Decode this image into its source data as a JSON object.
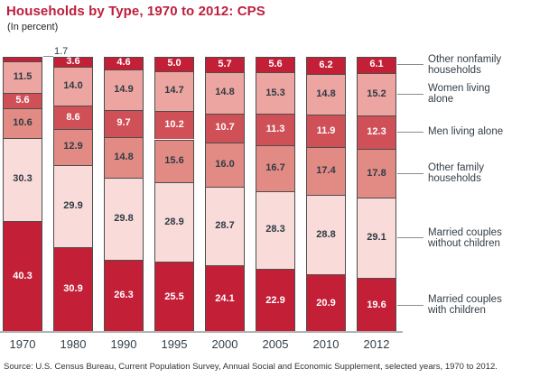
{
  "header": {
    "title": "Households by Type, 1970 to 2012: CPS",
    "subtitle": "(In percent)"
  },
  "source_note": "Source: U.S. Census Bureau, Current Population Survey, Annual Social and Economic Supplement, selected years, 1970 to 2012.",
  "colors": {
    "title_red": "#bd1f3c",
    "dark_red": "#c32038",
    "medium_red": "#d05057",
    "salmon": "#e28b84",
    "pink": "#eca5a0",
    "pale_pink": "#f9dcd9",
    "segment_border": "#4d4d4d",
    "axis_gray": "#b3b3b3",
    "text_dark": "#333e48"
  },
  "chart_data": {
    "type": "bar",
    "stacked": true,
    "title": "Households by Type, 1970 to 2012: CPS",
    "ylabel": "(In percent)",
    "ylim": [
      0,
      100
    ],
    "legend_position": "right",
    "grid": false,
    "categories": [
      "1970",
      "1980",
      "1990",
      "1995",
      "2000",
      "2005",
      "2010",
      "2012"
    ],
    "series": [
      {
        "name": "Married couples with children",
        "display": "Married couples\nwith children",
        "color": "#c32038",
        "label": "light",
        "values": [
          40.3,
          30.9,
          26.3,
          25.5,
          24.1,
          22.9,
          20.9,
          19.6
        ]
      },
      {
        "name": "Married couples without children",
        "display": "Married couples\nwithout children",
        "color": "#f9dcd9",
        "label": "dark",
        "values": [
          30.3,
          29.9,
          29.8,
          28.9,
          28.7,
          28.3,
          28.8,
          29.1
        ]
      },
      {
        "name": "Other family households",
        "display": "Other family\nhouseholds",
        "color": "#e28b84",
        "label": "dark",
        "values": [
          10.6,
          12.9,
          14.8,
          15.6,
          16.0,
          16.7,
          17.4,
          17.8
        ]
      },
      {
        "name": "Men living alone",
        "display": "Men living alone",
        "color": "#d05057",
        "label": "light",
        "values": [
          5.6,
          8.6,
          9.7,
          10.2,
          10.7,
          11.3,
          11.9,
          12.3
        ]
      },
      {
        "name": "Women living alone",
        "display": "Women living\nalone",
        "color": "#eca5a0",
        "label": "dark",
        "values": [
          11.5,
          14.0,
          14.9,
          14.7,
          14.8,
          15.3,
          14.8,
          15.2
        ]
      },
      {
        "name": "Other nonfamily households",
        "display": "Other nonfamily\nhouseholds",
        "color": "#c32038",
        "label": "light",
        "values": [
          1.7,
          3.6,
          4.6,
          5.0,
          5.7,
          5.6,
          6.2,
          6.1
        ]
      }
    ],
    "callout": {
      "category": "1970",
      "series": "Other nonfamily households",
      "value": "1.7"
    }
  }
}
